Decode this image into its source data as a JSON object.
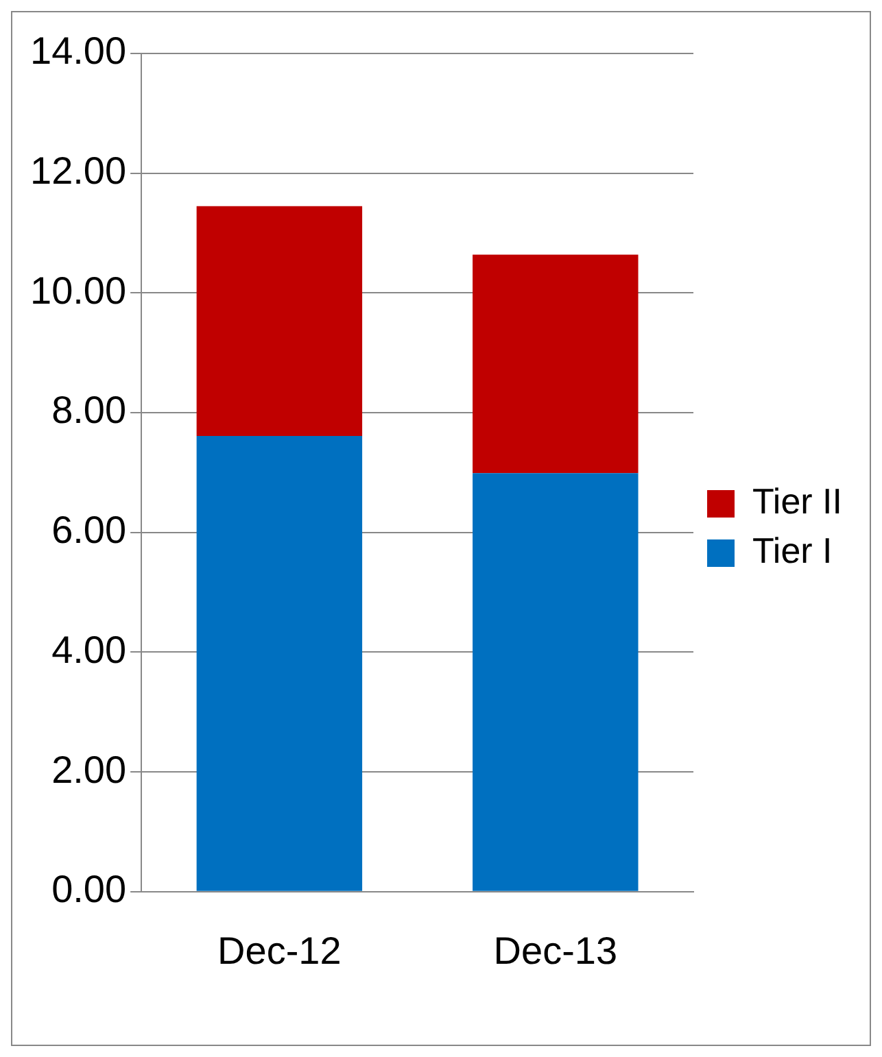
{
  "chart_data": {
    "type": "bar",
    "stacked": true,
    "categories": [
      "Dec-12",
      "Dec-13"
    ],
    "series": [
      {
        "name": "Tier I",
        "color": "#0070c0",
        "values": [
          7.61,
          6.99
        ]
      },
      {
        "name": "Tier II",
        "color": "#c00000",
        "values": [
          3.84,
          3.65
        ]
      }
    ],
    "ylim": [
      0,
      14
    ],
    "yticks": [
      {
        "value": 0,
        "label": "0.00"
      },
      {
        "value": 2,
        "label": "2.00"
      },
      {
        "value": 4,
        "label": "4.00"
      },
      {
        "value": 6,
        "label": "6.00"
      },
      {
        "value": 8,
        "label": "8.00"
      },
      {
        "value": 10,
        "label": "10.00"
      },
      {
        "value": 12,
        "label": "12.00"
      },
      {
        "value": 14,
        "label": "14.00"
      }
    ],
    "grid": "y",
    "legend": "right"
  }
}
